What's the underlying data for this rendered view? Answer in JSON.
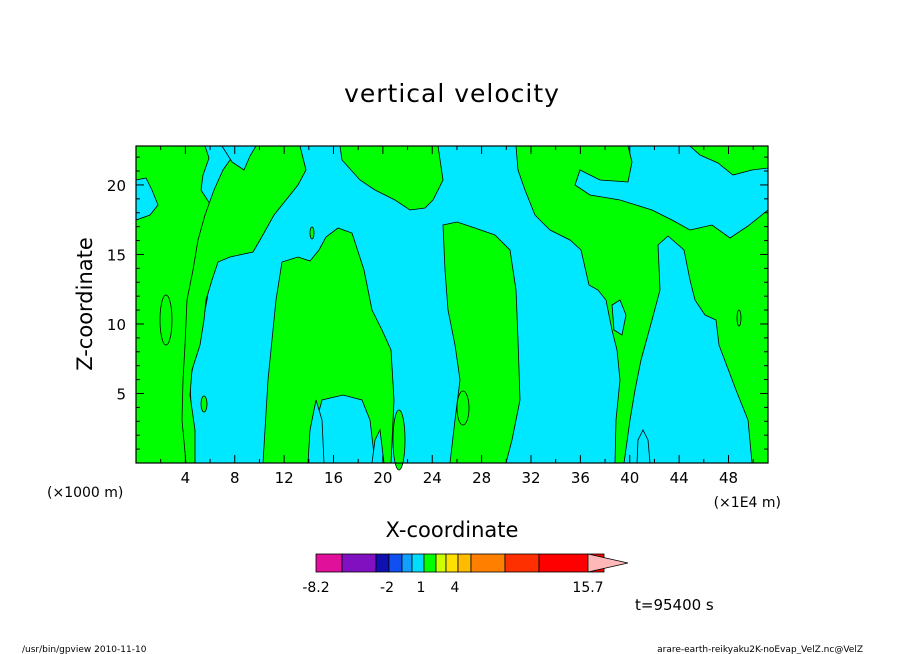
{
  "chart_data": {
    "type": "heatmap",
    "title": "vertical velocity",
    "xlabel": "X-coordinate",
    "ylabel": "Z-coordinate",
    "x_unit_left": "(×1000 m)",
    "x_unit_right": "(×1E4 m)",
    "x_ticks": [
      "4",
      "8",
      "12",
      "16",
      "20",
      "24",
      "28",
      "32",
      "36",
      "40",
      "44",
      "48"
    ],
    "y_ticks": [
      "5",
      "10",
      "15",
      "20"
    ],
    "xlim": [
      0,
      51.2
    ],
    "ylim": [
      0,
      22.8
    ],
    "colorbar": {
      "labels": [
        "-8.2",
        "-2",
        "1",
        "4",
        "15.7"
      ],
      "colors": [
        "#e0109a",
        "#8010c0",
        "#1010b0",
        "#1050f0",
        "#10a0ff",
        "#00ddff",
        "#00ff00",
        "#ccff00",
        "#ffe000",
        "#ffbb00",
        "#ff8000",
        "#ff3000",
        "#ff0000",
        "#ff8080",
        "#ffb8b8"
      ]
    },
    "field_colors": {
      "negative": "#00e8ff",
      "positive": "#00ff00"
    },
    "time_label": "t=95400 s",
    "footer_left": "/usr/bin/gpview  2010-11-10",
    "footer_right": "arare-earth-reikyaku2K-noEvap_VelZ.nc@VelZ"
  }
}
